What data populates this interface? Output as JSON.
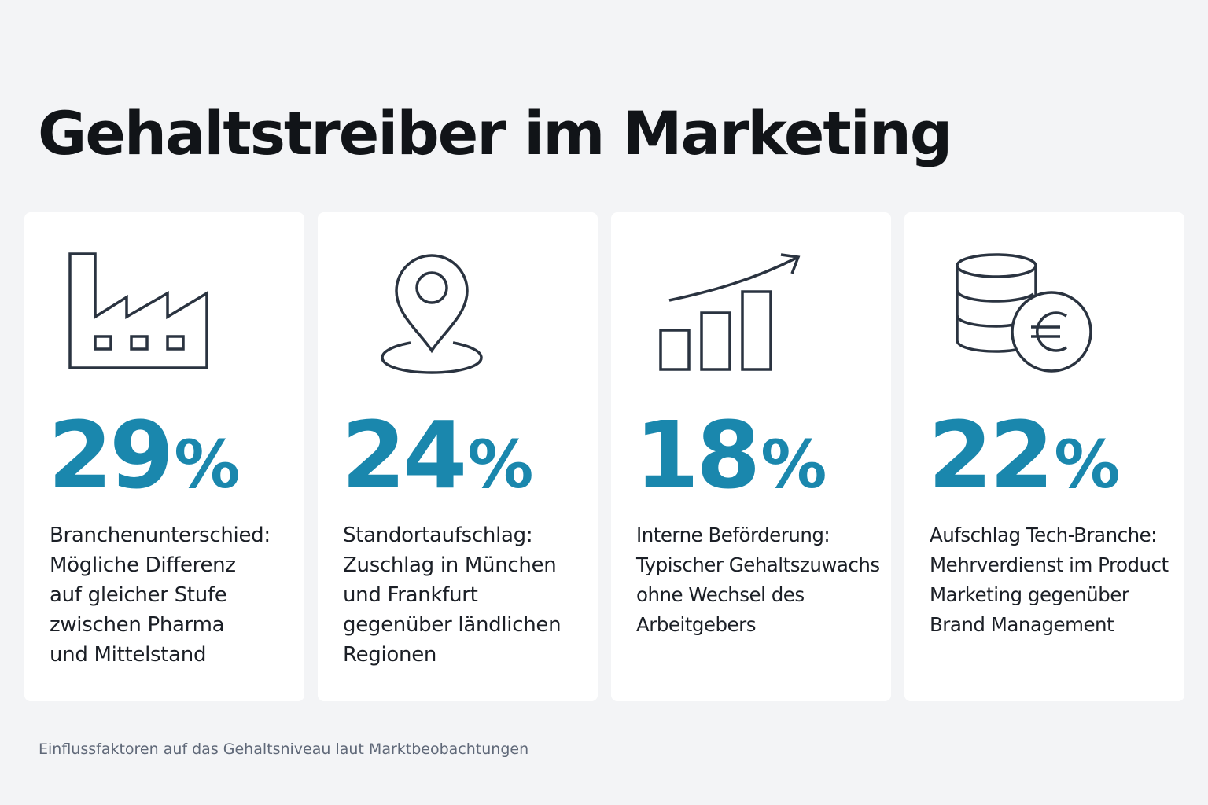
{
  "title": "Gehaltstreiber im Marketing",
  "accent_color": "#1a87ad",
  "cards": [
    {
      "icon": "factory-icon",
      "value": "29",
      "unit": "%",
      "text": "Branchenunterschied:\nMögliche Differenz\nauf gleicher Stufe\nzwischen Pharma\nund Mittelstand"
    },
    {
      "icon": "location-pin-icon",
      "value": "24",
      "unit": "%",
      "text": "Standortaufschlag:\nZuschlag in München\nund Frankfurt\ngegenüber ländlichen\nRegionen"
    },
    {
      "icon": "bar-chart-growth-icon",
      "value": "18",
      "unit": "%",
      "text": "Interne Beförderung:\nTypischer Gehaltszuwachs\nohne Wechsel des\nArbeitgebers"
    },
    {
      "icon": "coins-euro-icon",
      "value": "22",
      "unit": "%",
      "text": "Aufschlag Tech-Branche:\nMehrverdienst im Product\nMarketing gegenüber\nBrand Management"
    }
  ],
  "footer": "Einflussfaktoren auf das Gehaltsniveau laut Marktbeobachtungen"
}
